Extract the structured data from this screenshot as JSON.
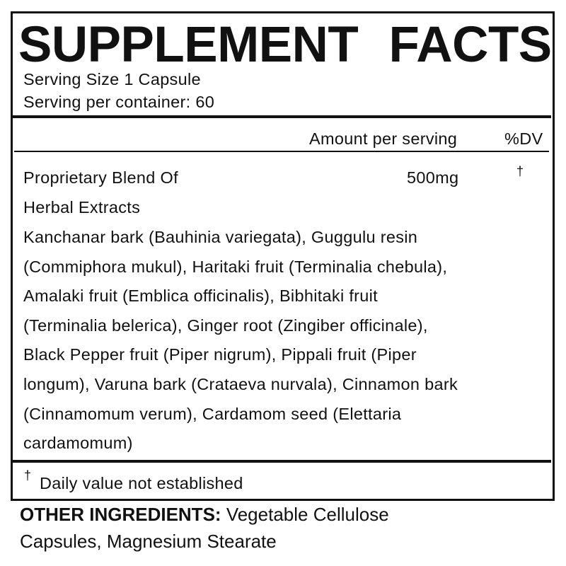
{
  "title": "SUPPLEMENT FACTS",
  "serving_size": "Serving Size 1 Capsule",
  "servings_per_container": "Serving per container: 60",
  "columns": {
    "amount": "Amount per serving",
    "dv": "%DV"
  },
  "blend": {
    "name_lines": [
      "Proprietary Blend Of",
      "Herbal Extracts"
    ],
    "amount": "500mg",
    "dv": "†",
    "ingredient_lines": [
      "Kanchanar bark (Bauhinia variegata), Guggulu resin",
      "(Commiphora mukul), Haritaki fruit (Terminalia chebula),",
      "Amalaki fruit (Emblica officinalis), Bibhitaki fruit",
      "(Terminalia belerica), Ginger root (Zingiber officinale),",
      "Black Pepper fruit (Piper nigrum), Pippali fruit (Piper",
      "longum), Varuna bark (Crataeva nurvala), Cinnamon bark",
      "(Cinnamomum verum), Cardamom seed (Elettaria",
      "cardamomum)"
    ]
  },
  "footnote": {
    "symbol": "†",
    "text": "Daily value not established"
  },
  "other_ingredients": {
    "label": "OTHER INGREDIENTS:",
    "line1": "Vegetable Cellulose",
    "line2": "Capsules, Magnesium Stearate"
  }
}
